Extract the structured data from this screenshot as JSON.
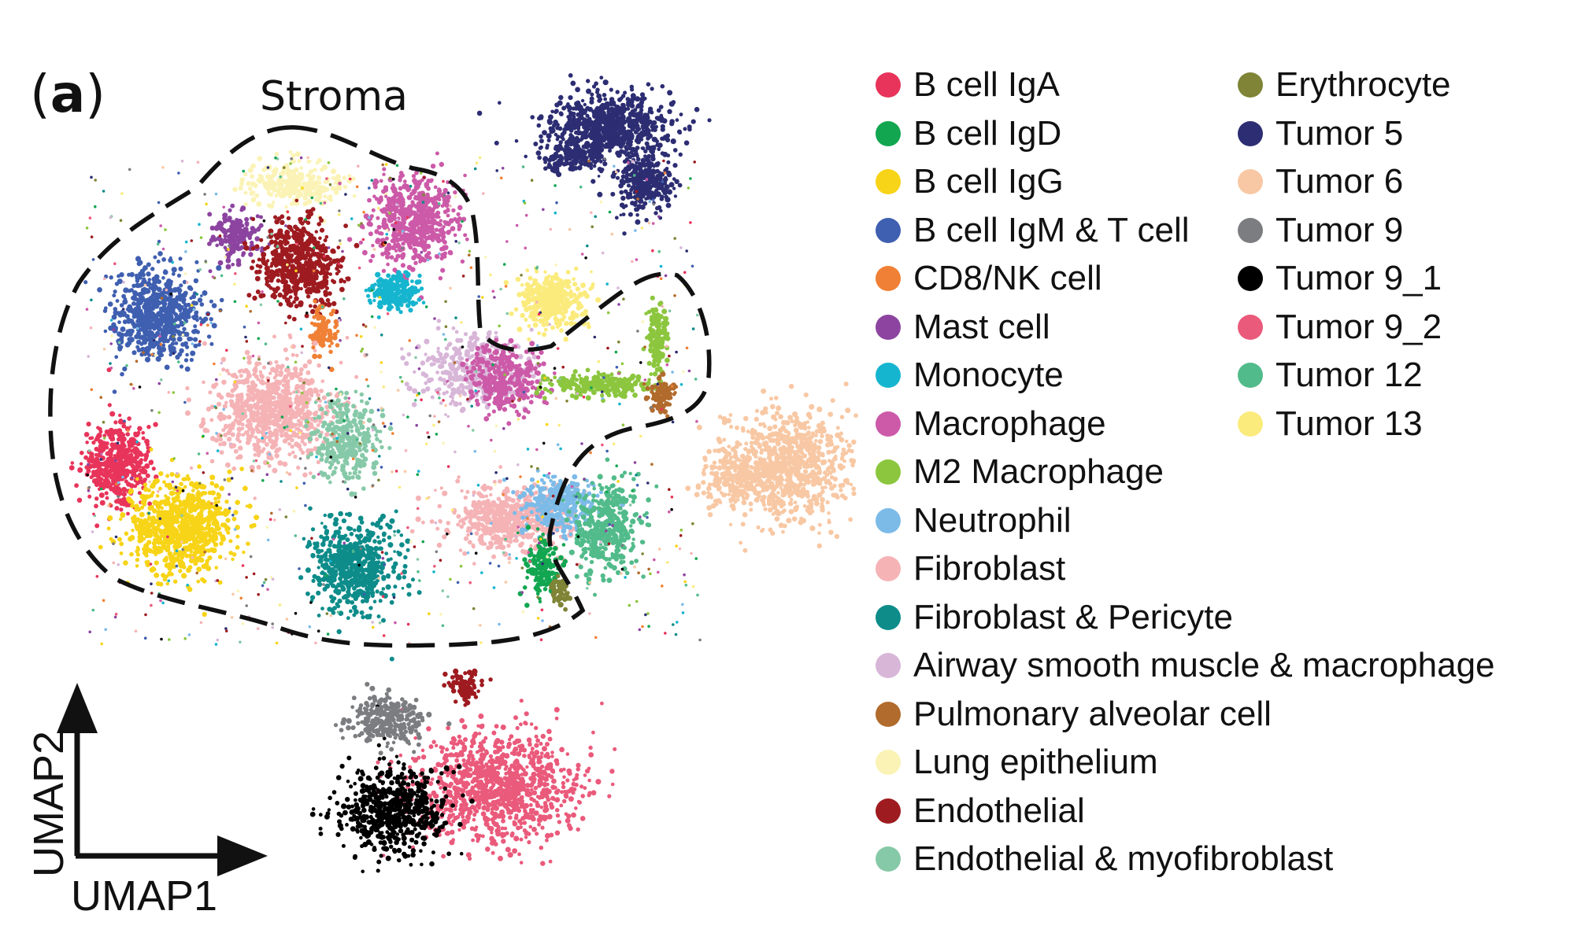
{
  "chart_data": {
    "type": "scatter",
    "panel_label": "a",
    "region_label": "Stroma",
    "xlabel": "UMAP1",
    "ylabel": "UMAP2",
    "grid": false,
    "legend_placement": "right",
    "series": [
      {
        "name": "B cell IgA",
        "color": "#e8345a"
      },
      {
        "name": "B cell IgD",
        "color": "#12a651"
      },
      {
        "name": "B cell IgG",
        "color": "#f7d417"
      },
      {
        "name": "B cell IgM & T cell",
        "color": "#3f5fb0"
      },
      {
        "name": "CD8/NK cell",
        "color": "#f08035"
      },
      {
        "name": "Mast cell",
        "color": "#8c44a0"
      },
      {
        "name": "Monocyte",
        "color": "#16b5cf"
      },
      {
        "name": "Macrophage",
        "color": "#cc5aa8"
      },
      {
        "name": "M2 Macrophage",
        "color": "#8cc63e"
      },
      {
        "name": "Neutrophil",
        "color": "#7cbbe8"
      },
      {
        "name": "Fibroblast",
        "color": "#f5b3b6"
      },
      {
        "name": "Fibroblast & Pericyte",
        "color": "#0d8c8a"
      },
      {
        "name": "Airway smooth muscle & macrophage",
        "color": "#d8b6d8"
      },
      {
        "name": "Pulmonary alveolar cell",
        "color": "#b16b2c"
      },
      {
        "name": "Lung epithelium",
        "color": "#fbf3b6"
      },
      {
        "name": "Endothelial",
        "color": "#9e1b20"
      },
      {
        "name": "Endothelial & myofibroblast",
        "color": "#86c9a8"
      },
      {
        "name": "Erythrocyte",
        "color": "#7f8436"
      },
      {
        "name": "Tumor 5",
        "color": "#2c2d72"
      },
      {
        "name": "Tumor 6",
        "color": "#f8c8a4"
      },
      {
        "name": "Tumor 9",
        "color": "#7b7d80"
      },
      {
        "name": "Tumor 9_1",
        "color": "#000000"
      },
      {
        "name": "Tumor 9_2",
        "color": "#ea5a7b"
      },
      {
        "name": "Tumor 12",
        "color": "#52bb8b"
      },
      {
        "name": "Tumor 13",
        "color": "#fbeb7d"
      }
    ]
  }
}
